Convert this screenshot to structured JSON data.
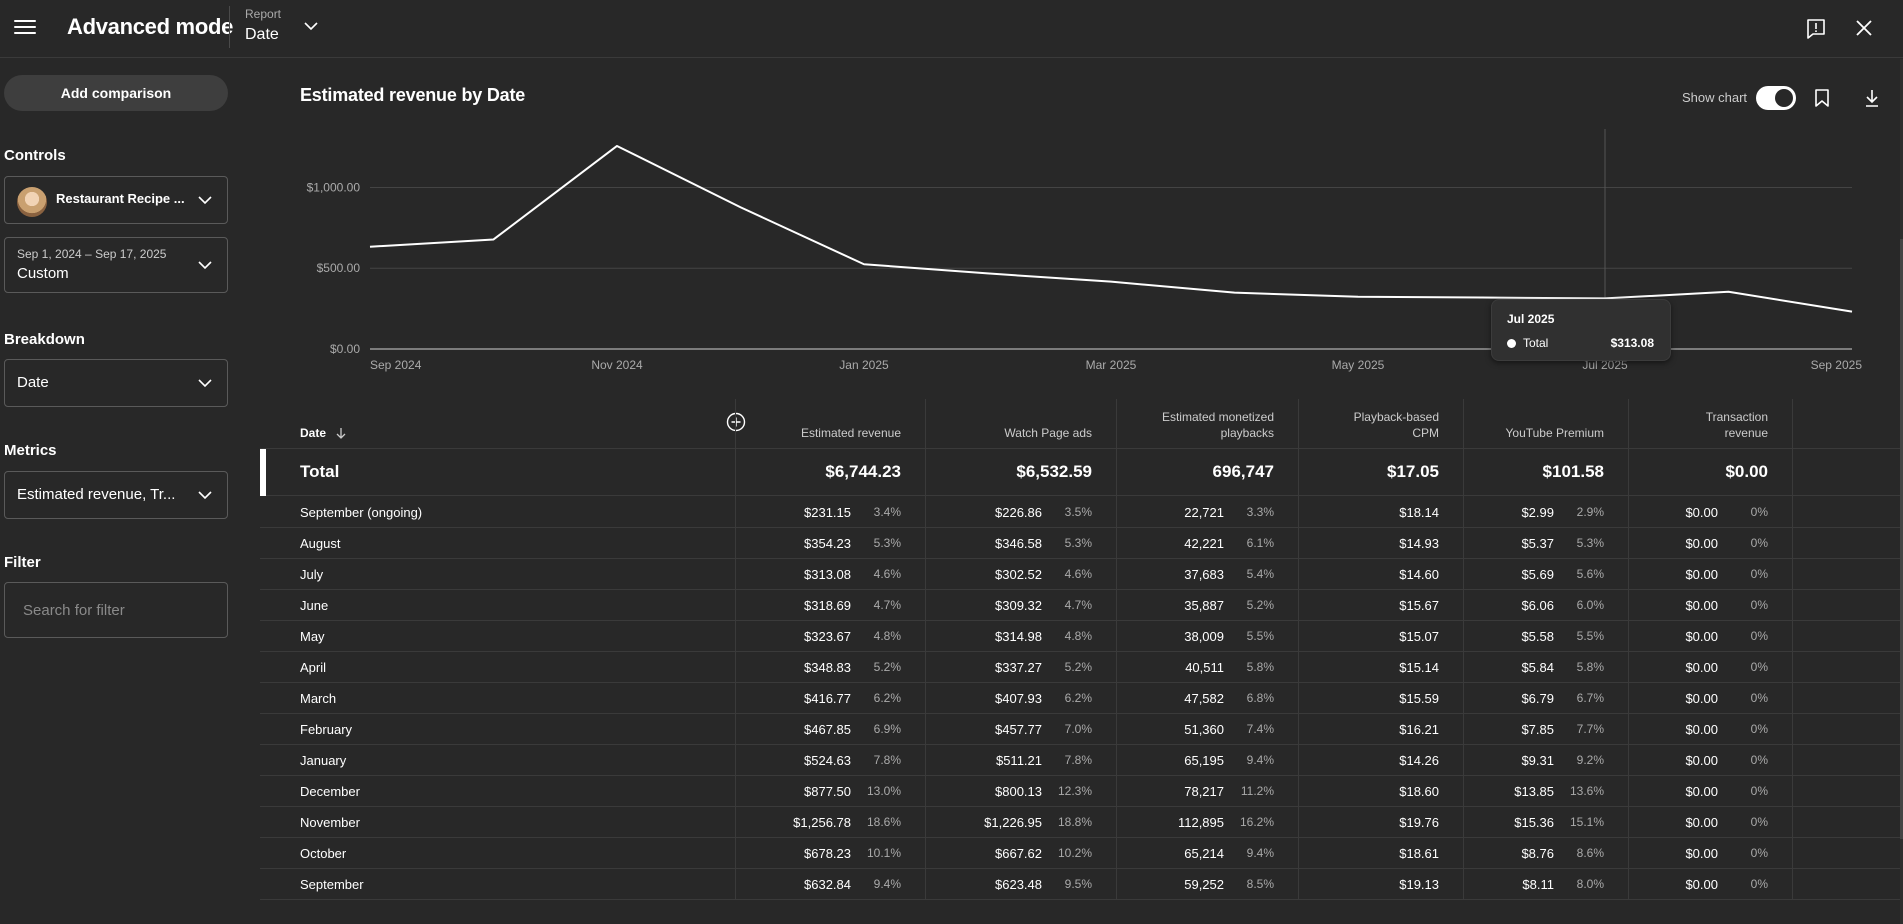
{
  "app": {
    "title": "Advanced mode"
  },
  "report": {
    "label": "Report",
    "value": "Date"
  },
  "sidebar": {
    "add_comparison": "Add comparison",
    "controls_label": "Controls",
    "channel": "Restaurant Recipe ...",
    "date_range_small": "Sep 1, 2024 – Sep 17, 2025",
    "date_range_value": "Custom",
    "breakdown_label": "Breakdown",
    "breakdown_value": "Date",
    "metrics_label": "Metrics",
    "metrics_value": "Estimated revenue, Tr...",
    "filter_label": "Filter",
    "filter_placeholder": "Search for filter"
  },
  "chart_header": {
    "title": "Estimated revenue by Date",
    "show_chart_label": "Show chart",
    "show_chart_on": true
  },
  "chart_data": {
    "type": "line",
    "title": "Estimated revenue by Date",
    "x": [
      "2024-09",
      "2024-10",
      "2024-11",
      "2024-12",
      "2025-01",
      "2025-02",
      "2025-03",
      "2025-04",
      "2025-05",
      "2025-06",
      "2025-07",
      "2025-08",
      "2025-09"
    ],
    "x_tick_labels": [
      "Sep 2024",
      "Nov 2024",
      "Jan 2025",
      "Mar 2025",
      "May 2025",
      "Jul 2025",
      "Sep 2025"
    ],
    "x_tick_values": [
      "2024-09",
      "2024-11",
      "2025-01",
      "2025-03",
      "2025-05",
      "2025-07",
      "2025-09"
    ],
    "y_tick_labels": [
      "$0.00",
      "$500.00",
      "$1,000.00"
    ],
    "y_tick_values": [
      0,
      500,
      1000
    ],
    "ylim": [
      0,
      1300
    ],
    "series": [
      {
        "name": "Total",
        "color": "#ffffff",
        "values": [
          632.84,
          678.23,
          1256.78,
          877.5,
          524.63,
          467.85,
          416.77,
          348.83,
          323.67,
          318.69,
          313.08,
          354.23,
          231.15
        ]
      }
    ],
    "grid": true,
    "tooltip": {
      "title": "Jul 2025",
      "series": "Total",
      "value": "$313.08",
      "x": "2025-07"
    }
  },
  "table": {
    "date_header": "Date",
    "columns": [
      {
        "label": "Estimated revenue",
        "lines": [
          "Estimated revenue"
        ]
      },
      {
        "label": "Watch Page ads",
        "lines": [
          "Watch Page ads"
        ]
      },
      {
        "label": "Estimated monetized playbacks",
        "lines": [
          "Estimated monetized",
          "playbacks"
        ]
      },
      {
        "label": "Playback-based CPM",
        "lines": [
          "Playback-based",
          "CPM"
        ]
      },
      {
        "label": "YouTube Premium",
        "lines": [
          "YouTube Premium"
        ]
      },
      {
        "label": "Transaction revenue",
        "lines": [
          "Transaction",
          "revenue"
        ]
      }
    ],
    "total": {
      "label": "Total",
      "values": [
        "$6,744.23",
        "$6,532.59",
        "696,747",
        "$17.05",
        "$101.58",
        "$0.00"
      ]
    },
    "rows": [
      {
        "label": "September (ongoing)",
        "cells": [
          [
            "$231.15",
            "3.4%"
          ],
          [
            "$226.86",
            "3.5%"
          ],
          [
            "22,721",
            "3.3%"
          ],
          [
            "$18.14",
            ""
          ],
          [
            "$2.99",
            "2.9%"
          ],
          [
            "$0.00",
            "0%"
          ]
        ]
      },
      {
        "label": "August",
        "cells": [
          [
            "$354.23",
            "5.3%"
          ],
          [
            "$346.58",
            "5.3%"
          ],
          [
            "42,221",
            "6.1%"
          ],
          [
            "$14.93",
            ""
          ],
          [
            "$5.37",
            "5.3%"
          ],
          [
            "$0.00",
            "0%"
          ]
        ]
      },
      {
        "label": "July",
        "cells": [
          [
            "$313.08",
            "4.6%"
          ],
          [
            "$302.52",
            "4.6%"
          ],
          [
            "37,683",
            "5.4%"
          ],
          [
            "$14.60",
            ""
          ],
          [
            "$5.69",
            "5.6%"
          ],
          [
            "$0.00",
            "0%"
          ]
        ]
      },
      {
        "label": "June",
        "cells": [
          [
            "$318.69",
            "4.7%"
          ],
          [
            "$309.32",
            "4.7%"
          ],
          [
            "35,887",
            "5.2%"
          ],
          [
            "$15.67",
            ""
          ],
          [
            "$6.06",
            "6.0%"
          ],
          [
            "$0.00",
            "0%"
          ]
        ]
      },
      {
        "label": "May",
        "cells": [
          [
            "$323.67",
            "4.8%"
          ],
          [
            "$314.98",
            "4.8%"
          ],
          [
            "38,009",
            "5.5%"
          ],
          [
            "$15.07",
            ""
          ],
          [
            "$5.58",
            "5.5%"
          ],
          [
            "$0.00",
            "0%"
          ]
        ]
      },
      {
        "label": "April",
        "cells": [
          [
            "$348.83",
            "5.2%"
          ],
          [
            "$337.27",
            "5.2%"
          ],
          [
            "40,511",
            "5.8%"
          ],
          [
            "$15.14",
            ""
          ],
          [
            "$5.84",
            "5.8%"
          ],
          [
            "$0.00",
            "0%"
          ]
        ]
      },
      {
        "label": "March",
        "cells": [
          [
            "$416.77",
            "6.2%"
          ],
          [
            "$407.93",
            "6.2%"
          ],
          [
            "47,582",
            "6.8%"
          ],
          [
            "$15.59",
            ""
          ],
          [
            "$6.79",
            "6.7%"
          ],
          [
            "$0.00",
            "0%"
          ]
        ]
      },
      {
        "label": "February",
        "cells": [
          [
            "$467.85",
            "6.9%"
          ],
          [
            "$457.77",
            "7.0%"
          ],
          [
            "51,360",
            "7.4%"
          ],
          [
            "$16.21",
            ""
          ],
          [
            "$7.85",
            "7.7%"
          ],
          [
            "$0.00",
            "0%"
          ]
        ]
      },
      {
        "label": "January",
        "cells": [
          [
            "$524.63",
            "7.8%"
          ],
          [
            "$511.21",
            "7.8%"
          ],
          [
            "65,195",
            "9.4%"
          ],
          [
            "$14.26",
            ""
          ],
          [
            "$9.31",
            "9.2%"
          ],
          [
            "$0.00",
            "0%"
          ]
        ]
      },
      {
        "label": "December",
        "cells": [
          [
            "$877.50",
            "13.0%"
          ],
          [
            "$800.13",
            "12.3%"
          ],
          [
            "78,217",
            "11.2%"
          ],
          [
            "$18.60",
            ""
          ],
          [
            "$13.85",
            "13.6%"
          ],
          [
            "$0.00",
            "0%"
          ]
        ]
      },
      {
        "label": "November",
        "cells": [
          [
            "$1,256.78",
            "18.6%"
          ],
          [
            "$1,226.95",
            "18.8%"
          ],
          [
            "112,895",
            "16.2%"
          ],
          [
            "$19.76",
            ""
          ],
          [
            "$15.36",
            "15.1%"
          ],
          [
            "$0.00",
            "0%"
          ]
        ]
      },
      {
        "label": "October",
        "cells": [
          [
            "$678.23",
            "10.1%"
          ],
          [
            "$667.62",
            "10.2%"
          ],
          [
            "65,214",
            "9.4%"
          ],
          [
            "$18.61",
            ""
          ],
          [
            "$8.76",
            "8.6%"
          ],
          [
            "$0.00",
            "0%"
          ]
        ]
      },
      {
        "label": "September",
        "cells": [
          [
            "$632.84",
            "9.4%"
          ],
          [
            "$623.48",
            "9.5%"
          ],
          [
            "59,252",
            "8.5%"
          ],
          [
            "$19.13",
            ""
          ],
          [
            "$8.11",
            "8.0%"
          ],
          [
            "$0.00",
            "0%"
          ]
        ]
      }
    ]
  }
}
